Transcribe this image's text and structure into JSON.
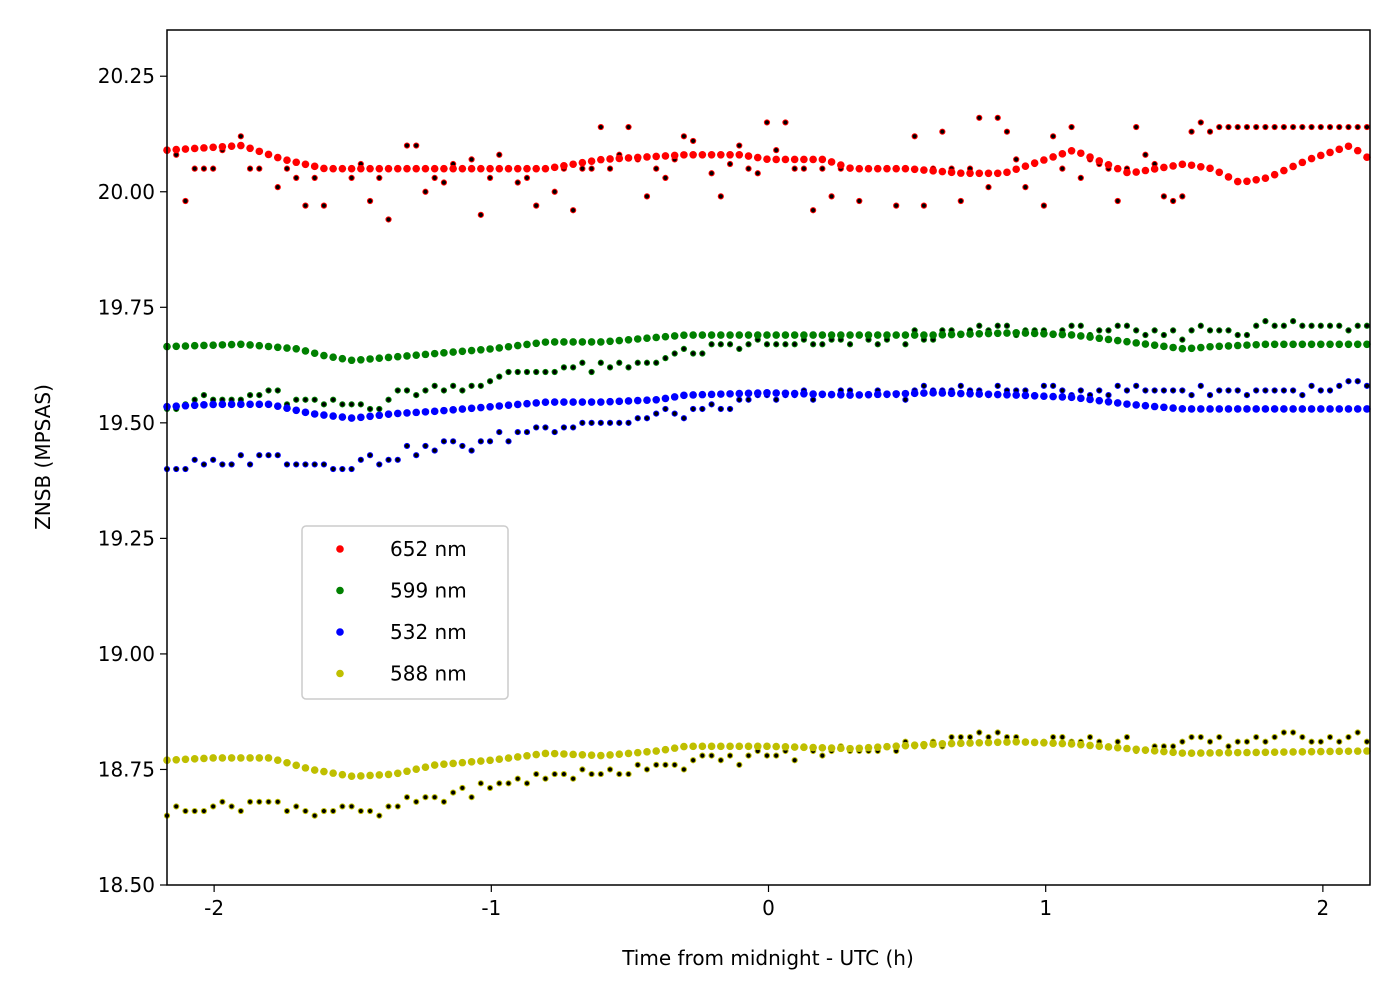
{
  "chart_data": {
    "type": "scatter",
    "title": "",
    "xlabel": "Time from midnight - UTC (h)",
    "ylabel": "ZNSB (MPSAS)",
    "xlim": [
      -2.17,
      2.17
    ],
    "ylim": [
      18.5,
      20.35
    ],
    "xticks": [
      -2,
      -1,
      0,
      1,
      2
    ],
    "xtick_labels": [
      "-2",
      "-1",
      "0",
      "1",
      "2"
    ],
    "yticks": [
      18.5,
      18.75,
      19.0,
      19.25,
      19.5,
      19.75,
      20.0,
      20.25
    ],
    "ytick_labels": [
      "18.50",
      "18.75",
      "19.00",
      "19.25",
      "19.50",
      "19.75",
      "20.00",
      "20.25"
    ],
    "grid": false,
    "legend_position": "center-left",
    "x_start": -2.17,
    "x_step": 0.0333,
    "series": [
      {
        "name": "652 nm",
        "color": "#ff0000",
        "dot_color": "#000000",
        "smooth_anchors": [
          [
            -2.17,
            20.09
          ],
          [
            -1.9,
            20.1
          ],
          [
            -1.75,
            20.07
          ],
          [
            -1.6,
            20.05
          ],
          [
            -1.3,
            20.05
          ],
          [
            -1.0,
            20.05
          ],
          [
            -0.8,
            20.05
          ],
          [
            -0.6,
            20.07
          ],
          [
            -0.3,
            20.08
          ],
          [
            -0.1,
            20.08
          ],
          [
            0.0,
            20.07
          ],
          [
            0.2,
            20.07
          ],
          [
            0.3,
            20.05
          ],
          [
            0.5,
            20.05
          ],
          [
            0.7,
            20.04
          ],
          [
            0.85,
            20.04
          ],
          [
            1.0,
            20.07
          ],
          [
            1.1,
            20.09
          ],
          [
            1.3,
            20.04
          ],
          [
            1.5,
            20.06
          ],
          [
            1.6,
            20.05
          ],
          [
            1.7,
            20.02
          ],
          [
            1.8,
            20.03
          ],
          [
            1.95,
            20.07
          ],
          [
            2.1,
            20.1
          ],
          [
            2.17,
            20.07
          ]
        ],
        "raw_values": [
          20.09,
          20.08,
          19.98,
          20.05,
          20.05,
          20.05,
          20.09,
          20.1,
          20.12,
          20.05,
          20.05,
          20.08,
          20.01,
          20.05,
          20.03,
          19.97,
          20.03,
          19.97,
          20.05,
          20.05,
          20.03,
          20.06,
          19.98,
          20.03,
          19.94,
          20.05,
          20.1,
          20.1,
          20.0,
          20.03,
          20.02,
          20.06,
          20.05,
          20.07,
          19.95,
          20.03,
          20.08,
          20.05,
          20.02,
          20.03,
          19.97,
          20.05,
          20.0,
          20.05,
          19.96,
          20.05,
          20.05,
          20.14,
          20.05,
          20.08,
          20.14,
          20.07,
          19.99,
          20.05,
          20.03,
          20.07,
          20.12,
          20.11,
          20.08,
          20.04,
          19.99,
          20.06,
          20.1,
          20.05,
          20.04,
          20.15,
          20.09,
          20.15,
          20.05,
          20.05,
          19.96,
          20.05,
          19.99,
          20.05,
          20.05,
          19.98,
          20.05,
          20.05,
          20.05,
          19.97,
          20.05,
          20.12,
          19.97,
          20.05,
          20.13,
          20.05,
          19.98,
          20.05,
          20.16,
          20.01,
          20.16,
          20.13,
          20.07,
          20.01,
          20.06,
          19.97,
          20.12,
          20.05,
          20.14,
          20.03,
          20.07,
          20.06,
          20.05,
          19.98,
          20.05,
          20.14,
          20.08,
          20.06,
          19.99,
          19.98,
          19.99,
          20.13,
          20.15,
          20.13,
          20.14
        ]
      },
      {
        "name": "599 nm",
        "color": "#008000",
        "dot_color": "#000000",
        "smooth_anchors": [
          [
            -2.17,
            19.665
          ],
          [
            -1.9,
            19.67
          ],
          [
            -1.7,
            19.66
          ],
          [
            -1.6,
            19.645
          ],
          [
            -1.5,
            19.635
          ],
          [
            -1.4,
            19.64
          ],
          [
            -1.2,
            19.65
          ],
          [
            -1.0,
            19.66
          ],
          [
            -0.8,
            19.675
          ],
          [
            -0.6,
            19.675
          ],
          [
            -0.4,
            19.685
          ],
          [
            -0.3,
            19.69
          ],
          [
            0.0,
            19.69
          ],
          [
            0.3,
            19.69
          ],
          [
            0.6,
            19.69
          ],
          [
            0.9,
            19.695
          ],
          [
            1.1,
            19.69
          ],
          [
            1.3,
            19.675
          ],
          [
            1.5,
            19.66
          ],
          [
            1.6,
            19.665
          ],
          [
            1.8,
            19.67
          ],
          [
            2.17,
            19.67
          ]
        ],
        "raw_anchors": [
          [
            -2.17,
            19.54
          ],
          [
            -2.0,
            19.55
          ],
          [
            -1.8,
            19.56
          ],
          [
            -1.6,
            19.54
          ],
          [
            -1.4,
            19.54
          ],
          [
            -1.3,
            19.57
          ],
          [
            -1.1,
            19.58
          ],
          [
            -0.9,
            19.61
          ],
          [
            -0.7,
            19.62
          ],
          [
            -0.5,
            19.62
          ],
          [
            -0.4,
            19.64
          ],
          [
            -0.2,
            19.66
          ],
          [
            0.0,
            19.67
          ],
          [
            0.2,
            19.67
          ],
          [
            0.4,
            19.68
          ],
          [
            0.6,
            19.69
          ],
          [
            0.85,
            19.7
          ],
          [
            1.0,
            19.7
          ],
          [
            1.2,
            19.7
          ],
          [
            1.4,
            19.69
          ],
          [
            1.6,
            19.7
          ],
          [
            1.9,
            19.71
          ],
          [
            2.17,
            19.71
          ]
        ]
      },
      {
        "name": "532 nm",
        "color": "#0000ff",
        "dot_color": "#000000",
        "smooth_anchors": [
          [
            -2.17,
            19.535
          ],
          [
            -2.0,
            19.54
          ],
          [
            -1.8,
            19.54
          ],
          [
            -1.65,
            19.52
          ],
          [
            -1.5,
            19.51
          ],
          [
            -1.35,
            19.52
          ],
          [
            -1.2,
            19.525
          ],
          [
            -1.0,
            19.535
          ],
          [
            -0.8,
            19.545
          ],
          [
            -0.6,
            19.545
          ],
          [
            -0.4,
            19.55
          ],
          [
            -0.3,
            19.56
          ],
          [
            0.0,
            19.565
          ],
          [
            0.3,
            19.56
          ],
          [
            0.6,
            19.565
          ],
          [
            0.9,
            19.56
          ],
          [
            1.1,
            19.555
          ],
          [
            1.3,
            19.54
          ],
          [
            1.5,
            19.53
          ],
          [
            2.17,
            19.53
          ]
        ],
        "raw_anchors": [
          [
            -2.17,
            19.4
          ],
          [
            -2.0,
            19.41
          ],
          [
            -1.8,
            19.43
          ],
          [
            -1.6,
            19.41
          ],
          [
            -1.4,
            19.42
          ],
          [
            -1.3,
            19.44
          ],
          [
            -1.1,
            19.45
          ],
          [
            -0.9,
            19.48
          ],
          [
            -0.7,
            19.5
          ],
          [
            -0.5,
            19.5
          ],
          [
            -0.4,
            19.52
          ],
          [
            -0.2,
            19.53
          ],
          [
            0.0,
            19.55
          ],
          [
            0.2,
            19.56
          ],
          [
            0.4,
            19.56
          ],
          [
            0.6,
            19.57
          ],
          [
            0.85,
            19.57
          ],
          [
            1.0,
            19.57
          ],
          [
            1.2,
            19.57
          ],
          [
            1.4,
            19.57
          ],
          [
            1.6,
            19.57
          ],
          [
            1.9,
            19.57
          ],
          [
            2.17,
            19.58
          ]
        ]
      },
      {
        "name": "588 nm",
        "color": "#bfbf00",
        "dot_color": "#000000",
        "smooth_anchors": [
          [
            -2.17,
            18.77
          ],
          [
            -2.0,
            18.775
          ],
          [
            -1.8,
            18.775
          ],
          [
            -1.65,
            18.75
          ],
          [
            -1.5,
            18.735
          ],
          [
            -1.35,
            18.74
          ],
          [
            -1.2,
            18.76
          ],
          [
            -1.0,
            18.77
          ],
          [
            -0.8,
            18.785
          ],
          [
            -0.6,
            18.78
          ],
          [
            -0.4,
            18.79
          ],
          [
            -0.3,
            18.8
          ],
          [
            0.0,
            18.8
          ],
          [
            0.3,
            18.795
          ],
          [
            0.6,
            18.805
          ],
          [
            0.9,
            18.81
          ],
          [
            1.1,
            18.805
          ],
          [
            1.3,
            18.795
          ],
          [
            1.5,
            18.785
          ],
          [
            2.17,
            18.79
          ]
        ],
        "raw_anchors": [
          [
            -2.17,
            18.66
          ],
          [
            -2.0,
            18.67
          ],
          [
            -1.8,
            18.68
          ],
          [
            -1.65,
            18.66
          ],
          [
            -1.5,
            18.66
          ],
          [
            -1.4,
            18.65
          ],
          [
            -1.3,
            18.68
          ],
          [
            -1.1,
            18.7
          ],
          [
            -0.9,
            18.73
          ],
          [
            -0.7,
            18.74
          ],
          [
            -0.5,
            18.75
          ],
          [
            -0.4,
            18.76
          ],
          [
            -0.2,
            18.77
          ],
          [
            0.0,
            18.78
          ],
          [
            0.2,
            18.79
          ],
          [
            0.4,
            18.8
          ],
          [
            0.6,
            18.81
          ],
          [
            0.85,
            18.82
          ],
          [
            1.0,
            18.82
          ],
          [
            1.2,
            18.81
          ],
          [
            1.4,
            18.8
          ],
          [
            1.6,
            18.81
          ],
          [
            1.9,
            18.82
          ],
          [
            2.17,
            18.82
          ]
        ]
      }
    ]
  }
}
